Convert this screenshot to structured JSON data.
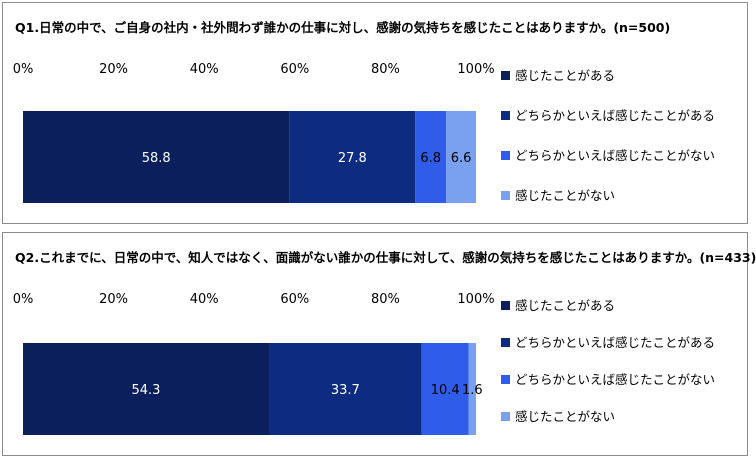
{
  "chart_data": [
    {
      "type": "bar",
      "orientation": "horizontal",
      "stacked": true,
      "title": "Q1.日常の中で、ご自身の社内・社外問わず誰かの仕事に対し、感謝の気持ちを感じたことはありますか。(n=500)",
      "ticks": [
        "0%",
        "20%",
        "40%",
        "60%",
        "80%",
        "100%"
      ],
      "xlim": [
        0,
        100
      ],
      "legend_position": "right",
      "series": [
        {
          "name": "感じたことがある",
          "value": 58.8,
          "label": "58.8",
          "color": "#0a1f5c"
        },
        {
          "name": "どちらかといえば感じたことがある",
          "value": 27.8,
          "label": "27.8",
          "color": "#0d2b80"
        },
        {
          "name": "どちらかといえば感じたことがない",
          "value": 6.8,
          "label": "6.8",
          "color": "#2f5ce8"
        },
        {
          "name": "感じたことがない",
          "value": 6.6,
          "label": "6.6",
          "color": "#7aa0f0"
        }
      ]
    },
    {
      "type": "bar",
      "orientation": "horizontal",
      "stacked": true,
      "title": "Q2.これまでに、日常の中で、知人ではなく、面識がない誰かの仕事に対して、感謝の気持ちを感じたことはありますか。(n=433)",
      "ticks": [
        "0%",
        "20%",
        "40%",
        "60%",
        "80%",
        "100%"
      ],
      "xlim": [
        0,
        100
      ],
      "legend_position": "right",
      "series": [
        {
          "name": "感じたことがある",
          "value": 54.3,
          "label": "54.3",
          "color": "#0a1f5c"
        },
        {
          "name": "どちらかといえば感じたことがある",
          "value": 33.7,
          "label": "33.7",
          "color": "#0d2b80"
        },
        {
          "name": "どちらかといえば感じたことがない",
          "value": 10.4,
          "label": "10.4",
          "color": "#2f5ce8"
        },
        {
          "name": "感じたことがない",
          "value": 1.6,
          "label": "1.6",
          "color": "#7aa0f0"
        }
      ]
    }
  ]
}
